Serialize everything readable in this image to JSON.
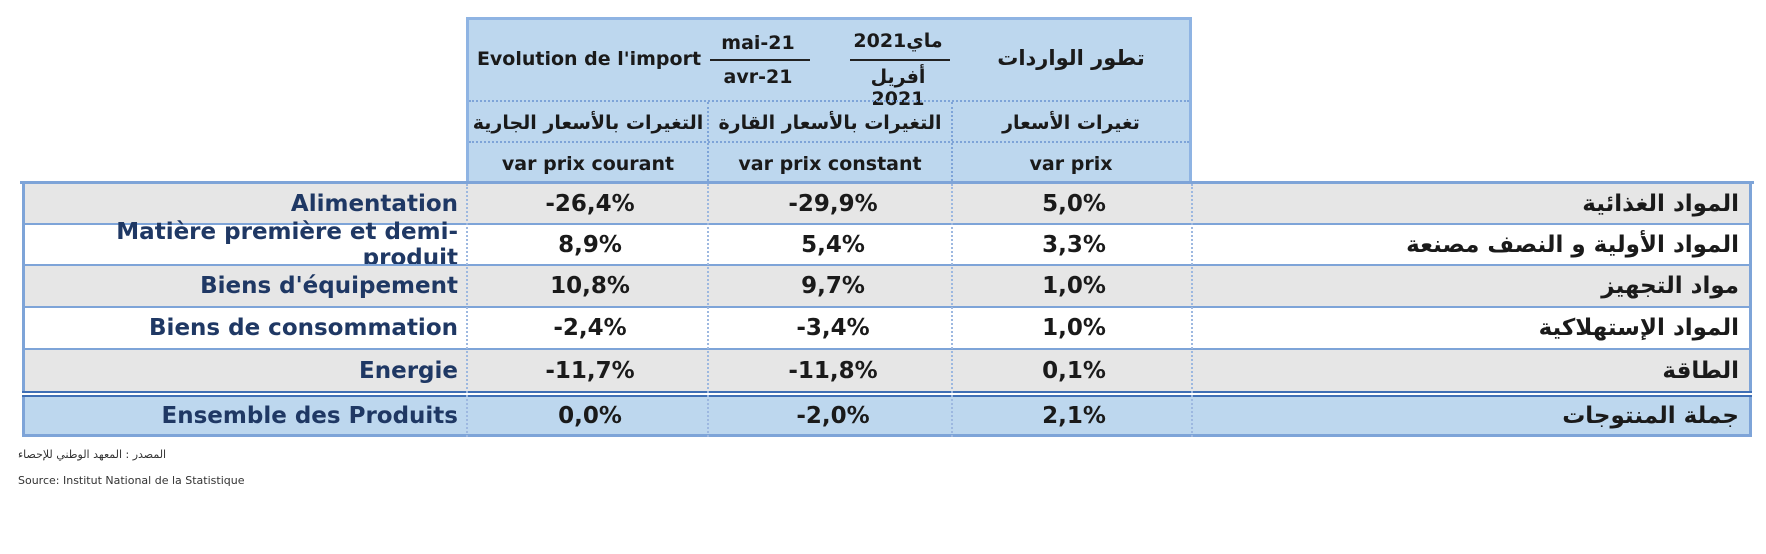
{
  "header": {
    "evolution_fr": "Evolution de l'import",
    "evolution_ar": "تطور الواردات",
    "period_top_fr": "mai-21",
    "period_bottom_fr": "avr-21",
    "period_top_ar": "ماي2021",
    "period_bottom_ar": "أفريل 2021"
  },
  "columns": [
    {
      "ar": "التغيرات بالأسعار الجارية",
      "fr": "var prix courant"
    },
    {
      "ar": "التغيرات بالأسعار القارة",
      "fr": "var prix constant"
    },
    {
      "ar": "تغيرات  الأسعار",
      "fr": "var prix"
    }
  ],
  "rows": [
    {
      "fr": "Alimentation",
      "ar": "المواد  الغذائية",
      "courant": "-26,4%",
      "constant": "-29,9%",
      "prix": "5,0%"
    },
    {
      "fr": "Matière première et demi-produit",
      "ar": "المواد الأولية و النصف مصنعة",
      "courant": "8,9%",
      "constant": "5,4%",
      "prix": "3,3%"
    },
    {
      "fr": "Biens d'équipement",
      "ar": "مواد التجهيز",
      "courant": "10,8%",
      "constant": "9,7%",
      "prix": "1,0%"
    },
    {
      "fr": "Biens de consommation",
      "ar": "المواد الإستهلاكية",
      "courant": "-2,4%",
      "constant": "-3,4%",
      "prix": "1,0%"
    },
    {
      "fr": "Energie",
      "ar": "الطاقة",
      "courant": "-11,7%",
      "constant": "-11,8%",
      "prix": "0,1%"
    }
  ],
  "total": {
    "fr": "Ensemble des Produits",
    "ar": "جملة المنتوجات",
    "courant": "0,0%",
    "constant": "-2,0%",
    "prix": "2,1%"
  },
  "footer": {
    "source_ar": "المصدر : المعهد الوطني للإحصاء",
    "source_fr": "Source: Institut National de la Statistique"
  },
  "colors": {
    "header_bg": "#bdd7ee",
    "row_grey": "#e6e6e6",
    "border": "#7ea4d8",
    "label_fr": "#1f3864"
  }
}
